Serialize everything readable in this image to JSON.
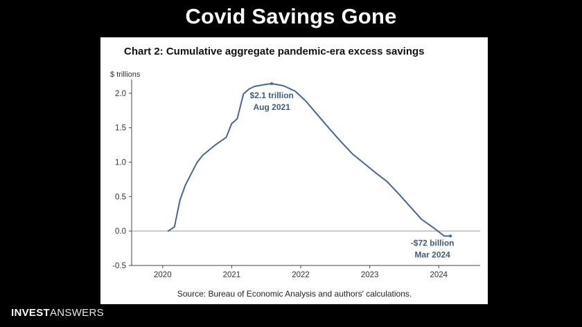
{
  "slide": {
    "title": "Covid Savings Gone"
  },
  "brand": {
    "part1": "INVEST",
    "part2": "ANSWERS"
  },
  "colors": {
    "line": "#47658f",
    "annotation": "#3f5b84",
    "axis": "#444444",
    "zero_line": "#999999"
  },
  "chart_data": {
    "type": "line",
    "title": "Chart 2: Cumulative aggregate pandemic-era excess savings",
    "ylabel": "$ trillions",
    "source": "Source: Bureau of Economic Analysis and authors' calculations.",
    "x_ticks": [
      "2020",
      "2021",
      "2022",
      "2023",
      "2024"
    ],
    "y_ticks": [
      "2.0",
      "1.5",
      "1.0",
      "0.5",
      "0.0",
      "-0.5"
    ],
    "xlim": [
      2019.55,
      2024.6
    ],
    "ylim": [
      -0.5,
      2.2
    ],
    "series": [
      {
        "x": [
          2020.08,
          2020.17,
          2020.25,
          2020.33,
          2020.5,
          2020.58,
          2020.75,
          2020.92,
          2021.0,
          2021.08,
          2021.17,
          2021.25,
          2021.33,
          2021.5,
          2021.58,
          2021.75,
          2021.92,
          2022.08,
          2022.25,
          2022.42,
          2022.58,
          2022.75,
          2022.92,
          2023.08,
          2023.25,
          2023.42,
          2023.58,
          2023.75,
          2023.92,
          2024.08,
          2024.17
        ],
        "y": [
          0.0,
          0.06,
          0.45,
          0.67,
          1.0,
          1.1,
          1.24,
          1.36,
          1.56,
          1.63,
          1.99,
          2.06,
          2.1,
          2.13,
          2.14,
          2.11,
          2.03,
          1.88,
          1.68,
          1.48,
          1.3,
          1.12,
          0.98,
          0.85,
          0.72,
          0.54,
          0.36,
          0.17,
          0.05,
          -0.072,
          -0.072
        ]
      }
    ],
    "annotations": [
      {
        "x": 2021.58,
        "y": 2.14,
        "line1": "$2.1 trillion",
        "line2": "Aug 2021"
      },
      {
        "x": 2024.17,
        "y": -0.072,
        "line1": "-$72 billion",
        "line2": "Mar 2024"
      }
    ]
  }
}
